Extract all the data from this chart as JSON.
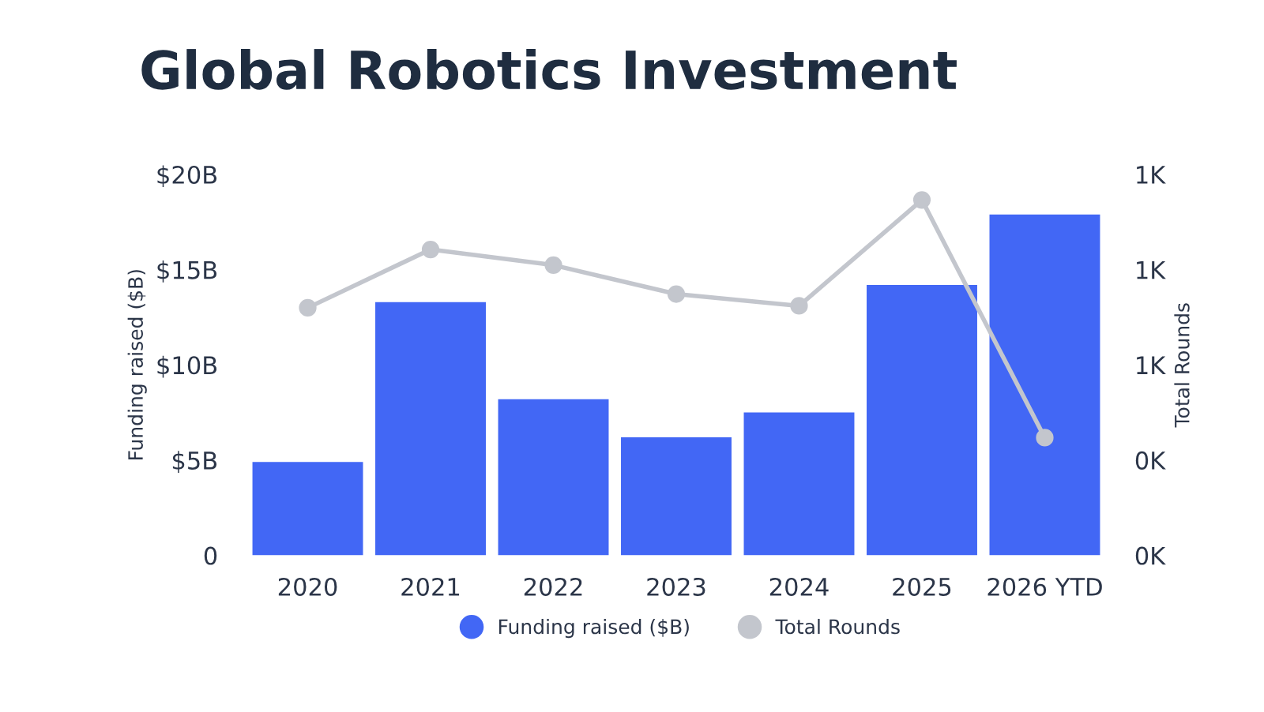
{
  "chart_data": {
    "type": "bar",
    "title": "Global Robotics Investment",
    "categories": [
      "2020",
      "2021",
      "2022",
      "2023",
      "2024",
      "2025",
      "2026 YTD"
    ],
    "series": [
      {
        "name": "Funding raised ($B)",
        "color": "#4267f5",
        "values": [
          4.9,
          13.3,
          8.2,
          6.2,
          7.5,
          14.2,
          17.9
        ]
      },
      {
        "name": "Total Rounds",
        "type": "line",
        "axis": "y2",
        "color": "#c3c6cd",
        "marker": "circle",
        "values": [
          650,
          803,
          762,
          686,
          655,
          933,
          309
        ]
      }
    ],
    "ylabel": "Funding raised ($B)",
    "y2label": "Total Rounds",
    "ylim": [
      0,
      20
    ],
    "yticks": [
      0,
      {
        "value": 5,
        "label": "$5B"
      },
      {
        "value": 10,
        "label": "$10B"
      },
      {
        "value": 15,
        "label": "$15B"
      },
      {
        "value": 20,
        "label": "$20B"
      }
    ],
    "y2lim": [
      0,
      1000
    ],
    "y2ticks": [
      {
        "value": 0,
        "label": "0K"
      },
      {
        "value": 250,
        "label": "0K"
      },
      {
        "value": 500,
        "label": "1K"
      },
      {
        "value": 750,
        "label": "1K"
      },
      {
        "value": 1000,
        "label": "1K"
      }
    ],
    "grid": false,
    "legend": "bottom"
  }
}
